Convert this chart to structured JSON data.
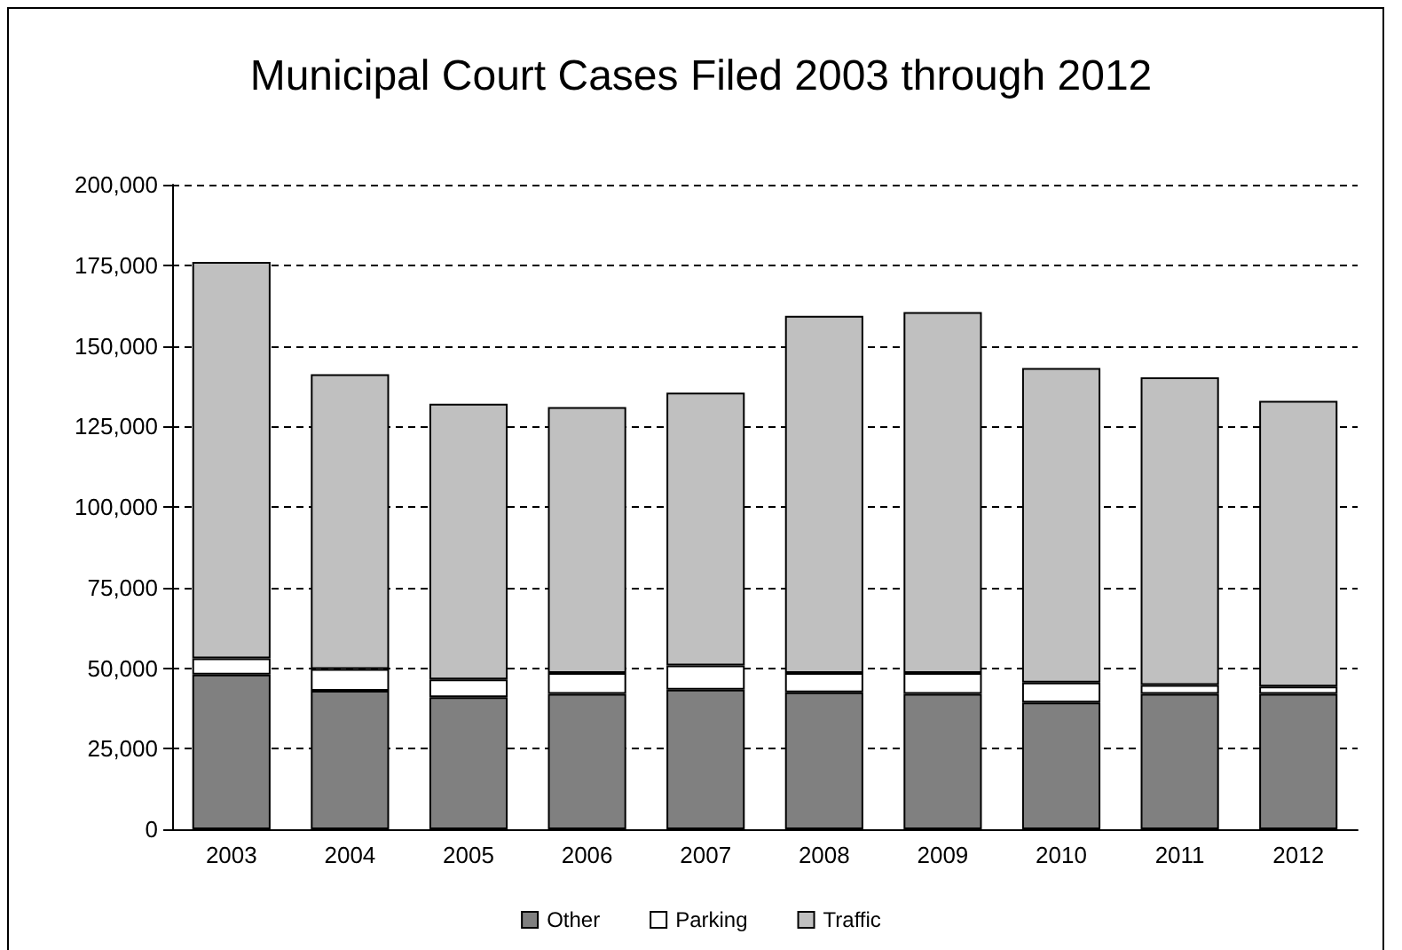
{
  "chart_data": {
    "type": "bar",
    "title": "Municipal Court Cases Filed 2003 through 2012",
    "categories": [
      "2003",
      "2004",
      "2005",
      "2006",
      "2007",
      "2008",
      "2009",
      "2010",
      "2011",
      "2012"
    ],
    "stacked": true,
    "series": [
      {
        "name": "Other",
        "color": "#808080",
        "values": [
          48000,
          43000,
          41000,
          42000,
          43300,
          42500,
          42000,
          39300,
          42000,
          42000
        ]
      },
      {
        "name": "Parking",
        "color": "#ffffff",
        "values": [
          5000,
          6700,
          5500,
          6500,
          7500,
          6000,
          6500,
          6200,
          2800,
          2300
        ]
      },
      {
        "name": "Traffic",
        "color": "#c0c0c0",
        "values": [
          123000,
          91500,
          85500,
          82500,
          84700,
          110800,
          112000,
          97600,
          95400,
          88600
        ]
      }
    ],
    "ylim": [
      0,
      200000
    ],
    "yticks": [
      {
        "value": 0,
        "label": "0"
      },
      {
        "value": 25000,
        "label": "25,000"
      },
      {
        "value": 50000,
        "label": "50,000"
      },
      {
        "value": 75000,
        "label": "75,000"
      },
      {
        "value": 100000,
        "label": "100,000"
      },
      {
        "value": 125000,
        "label": "125,000"
      },
      {
        "value": 150000,
        "label": "150,000"
      },
      {
        "value": 175000,
        "label": "175,000"
      },
      {
        "value": 200000,
        "label": "200,000"
      }
    ],
    "grid": "y",
    "legend": "bottom"
  }
}
